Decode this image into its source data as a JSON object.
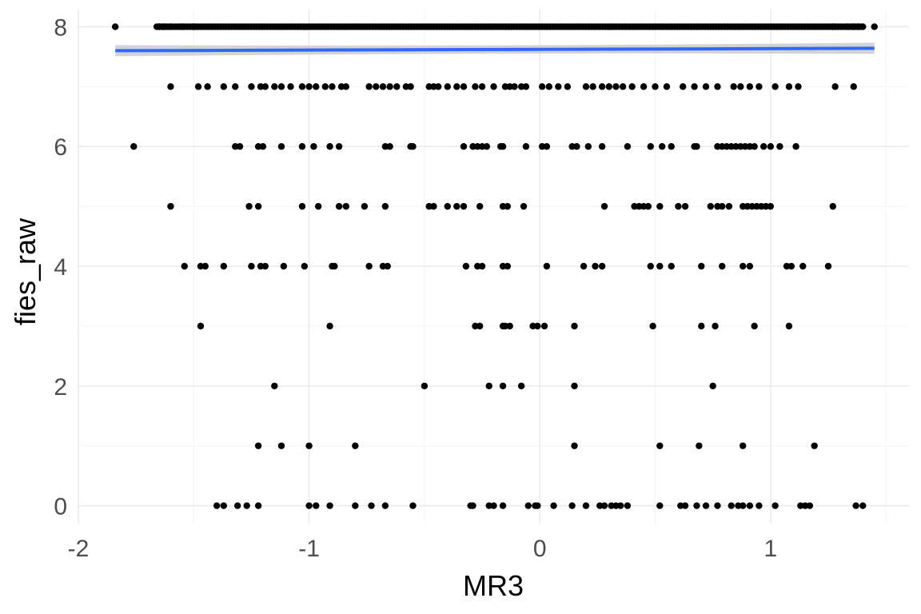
{
  "chart_data": {
    "type": "scatter",
    "title": "",
    "xlabel": "MR3",
    "ylabel": "fies_raw",
    "xlim": [
      -2.0,
      1.6
    ],
    "ylim": [
      -0.3,
      8.3
    ],
    "x_ticks": [
      -2,
      -1,
      0,
      1
    ],
    "x_tick_labels": [
      "-2",
      "-1",
      "0",
      "1"
    ],
    "y_ticks": [
      0,
      2,
      4,
      6,
      8
    ],
    "y_tick_labels": [
      "0",
      "2",
      "4",
      "6",
      "8"
    ],
    "grid": true,
    "legend": "none",
    "colors": {
      "point": "#000000",
      "trend_line": "#3366ff",
      "confidence_band": "#cccccc",
      "grid": "#ebebeb",
      "tick_text": "#4d4d4d"
    },
    "trend_line": {
      "method": "linear",
      "x": [
        -1.84,
        1.45
      ],
      "y": [
        7.6,
        7.64
      ]
    },
    "points": {
      "y8_dense_range": [
        -1.66,
        1.4
      ],
      "y8_extra": [
        -1.84,
        -1.65,
        -1.63,
        -1.6,
        -1.55,
        -1.5,
        1.27,
        1.33,
        1.36,
        1.38,
        1.45
      ],
      "y7": [
        -1.6,
        -1.48,
        -1.44,
        -1.37,
        -1.32,
        -1.25,
        -1.21,
        -1.19,
        -1.15,
        -1.12,
        -1.08,
        -1.03,
        -1.0,
        -0.97,
        -0.93,
        -0.9,
        -0.86,
        -0.84,
        -0.74,
        -0.71,
        -0.68,
        -0.65,
        -0.62,
        -0.58,
        -0.56,
        -0.48,
        -0.46,
        -0.44,
        -0.4,
        -0.36,
        -0.33,
        -0.28,
        -0.25,
        -0.2,
        -0.15,
        -0.13,
        -0.11,
        -0.08,
        -0.06,
        0.01,
        0.04,
        0.08,
        0.12,
        0.2,
        0.23,
        0.27,
        0.3,
        0.33,
        0.36,
        0.4,
        0.45,
        0.5,
        0.55,
        0.62,
        0.67,
        0.72,
        0.77,
        0.84,
        0.87,
        0.91,
        0.95,
        1.02,
        1.08,
        1.12,
        1.28,
        1.36
      ],
      "y6": [
        -1.76,
        -1.32,
        -1.3,
        -1.22,
        -1.2,
        -1.12,
        -1.03,
        -0.98,
        -0.91,
        -0.87,
        -0.67,
        -0.65,
        -0.56,
        -0.55,
        -0.33,
        -0.29,
        -0.27,
        -0.25,
        -0.23,
        -0.17,
        -0.16,
        -0.06,
        0.01,
        0.03,
        0.14,
        0.16,
        0.21,
        0.27,
        0.38,
        0.48,
        0.53,
        0.57,
        0.67,
        0.68,
        0.77,
        0.79,
        0.81,
        0.83,
        0.85,
        0.87,
        0.89,
        0.91,
        0.93,
        0.97,
        1.0,
        1.04,
        1.11
      ],
      "y5": [
        -1.6,
        -1.26,
        -1.22,
        -1.03,
        -0.96,
        -0.87,
        -0.84,
        -0.76,
        -0.67,
        -0.48,
        -0.46,
        -0.4,
        -0.36,
        -0.33,
        -0.26,
        -0.16,
        -0.14,
        -0.07,
        0.28,
        0.41,
        0.43,
        0.45,
        0.47,
        0.52,
        0.6,
        0.63,
        0.74,
        0.77,
        0.79,
        0.82,
        0.88,
        0.9,
        0.92,
        0.94,
        0.96,
        0.98,
        1.0,
        1.27
      ],
      "y4": [
        -1.54,
        -1.47,
        -1.45,
        -1.37,
        -1.25,
        -1.21,
        -1.19,
        -1.11,
        -1.02,
        -0.9,
        -0.89,
        -0.74,
        -0.68,
        -0.66,
        -0.32,
        -0.27,
        -0.25,
        -0.16,
        -0.14,
        0.03,
        0.19,
        0.24,
        0.27,
        0.48,
        0.52,
        0.57,
        0.7,
        0.79,
        0.88,
        0.91,
        1.07,
        1.09,
        1.14,
        1.25
      ],
      "y3": [
        -1.47,
        -0.91,
        -0.28,
        -0.26,
        -0.16,
        -0.15,
        -0.13,
        -0.03,
        -0.01,
        0.02,
        0.15,
        0.49,
        0.7,
        0.76,
        0.93,
        1.08
      ],
      "y2": [
        -1.15,
        -0.5,
        -0.22,
        -0.16,
        -0.08,
        0.15,
        0.75
      ],
      "y1": [
        -1.22,
        -1.12,
        -1.0,
        -0.8,
        0.15,
        0.52,
        0.69,
        0.88,
        1.19
      ],
      "y0": [
        -1.4,
        -1.37,
        -1.31,
        -1.27,
        -1.22,
        -1.0,
        -0.97,
        -0.91,
        -0.8,
        -0.73,
        -0.67,
        -0.55,
        -0.3,
        -0.29,
        -0.22,
        -0.2,
        -0.16,
        -0.05,
        -0.02,
        -0.01,
        0.06,
        0.14,
        0.2,
        0.26,
        0.28,
        0.31,
        0.33,
        0.35,
        0.38,
        0.52,
        0.61,
        0.63,
        0.68,
        0.72,
        0.77,
        0.83,
        0.86,
        0.88,
        0.91,
        0.95,
        1.02,
        1.13,
        1.15,
        1.17,
        1.37,
        1.4
      ]
    }
  }
}
